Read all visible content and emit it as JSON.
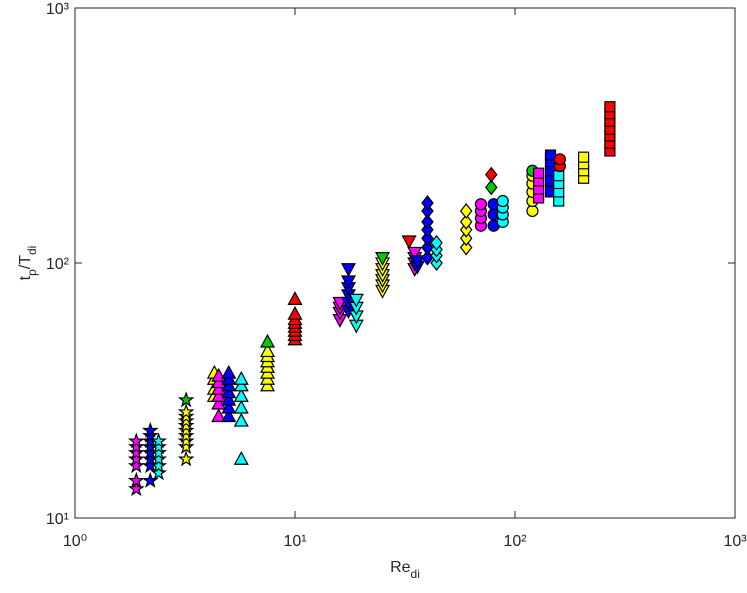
{
  "chart_data": {
    "type": "scatter",
    "xlabel": [
      "Re",
      "di"
    ],
    "ylabel": [
      "t",
      "p",
      "/T",
      "di"
    ],
    "xscale": "log",
    "yscale": "log",
    "xlim": [
      1,
      1000
    ],
    "ylim": [
      10,
      1000
    ],
    "xticks": [
      {
        "value": 1,
        "label": "10⁰"
      },
      {
        "value": 10,
        "label": "10¹"
      },
      {
        "value": 100,
        "label": "10²"
      },
      {
        "value": 1000,
        "label": "10³"
      }
    ],
    "yticks": [
      {
        "value": 10,
        "label": "10¹"
      },
      {
        "value": 100,
        "label": "10²"
      },
      {
        "value": 1000,
        "label": "10³"
      }
    ],
    "series": [
      {
        "marker": "star",
        "color": "#ff00ff",
        "x": [
          1.9,
          1.9,
          1.9,
          1.9,
          1.9,
          1.9,
          1.9
        ],
        "y": [
          13,
          14,
          16,
          17,
          18,
          19,
          20
        ]
      },
      {
        "marker": "star",
        "color": "#0000ff",
        "x": [
          2.2,
          2.2,
          2.2,
          2.2,
          2.2,
          2.2,
          2.2,
          2.2
        ],
        "y": [
          14,
          16,
          17,
          18,
          19,
          20,
          21,
          22
        ]
      },
      {
        "marker": "star",
        "color": "#00ffff",
        "x": [
          2.4,
          2.4,
          2.4,
          2.4,
          2.4,
          2.4
        ],
        "y": [
          15,
          16,
          17,
          18,
          19,
          20
        ]
      },
      {
        "marker": "star",
        "color": "#ffff00",
        "x": [
          3.2,
          3.2,
          3.2,
          3.2,
          3.2,
          3.2,
          3.2,
          3.2,
          3.2
        ],
        "y": [
          17,
          19,
          20,
          21,
          22,
          23,
          24,
          25,
          26
        ]
      },
      {
        "marker": "star",
        "color": "#00cc00",
        "x": [
          3.2
        ],
        "y": [
          29
        ]
      },
      {
        "marker": "triangle-up",
        "color": "#ffff00",
        "x": [
          4.3,
          4.3,
          4.3,
          4.3
        ],
        "y": [
          30,
          32,
          35,
          37
        ]
      },
      {
        "marker": "triangle-up",
        "color": "#ff00ff",
        "x": [
          4.5,
          4.5,
          4.5,
          4.5,
          4.5,
          4.5
        ],
        "y": [
          25,
          28,
          30,
          32,
          34,
          36
        ]
      },
      {
        "marker": "triangle-up",
        "color": "#0000ff",
        "x": [
          5,
          5,
          5,
          5,
          5,
          5,
          5
        ],
        "y": [
          25,
          27,
          29,
          31,
          33,
          35,
          37
        ]
      },
      {
        "marker": "triangle-up",
        "color": "#00ffff",
        "x": [
          5.7,
          5.7,
          5.7,
          5.7,
          5.7,
          5.7
        ],
        "y": [
          17,
          24,
          27,
          30,
          33,
          35
        ]
      },
      {
        "marker": "triangle-up",
        "color": "#ffff00",
        "x": [
          7.5,
          7.5,
          7.5,
          7.5,
          7.5,
          7.5,
          7.5
        ],
        "y": [
          33,
          35,
          37,
          39,
          41,
          43,
          45
        ]
      },
      {
        "marker": "triangle-up",
        "color": "#00cc00",
        "x": [
          7.5
        ],
        "y": [
          49
        ]
      },
      {
        "marker": "triangle-up",
        "color": "#ff0000",
        "x": [
          10,
          10,
          10,
          10,
          10,
          10,
          10,
          10
        ],
        "y": [
          50,
          52,
          54,
          56,
          58,
          60,
          63,
          72
        ]
      },
      {
        "marker": "triangle-down",
        "color": "#ff00ff",
        "x": [
          16,
          16,
          16,
          16
        ],
        "y": [
          60,
          64,
          67,
          70
        ]
      },
      {
        "marker": "triangle-down",
        "color": "#0000ff",
        "x": [
          17.5,
          17.5,
          17.5,
          17.5,
          17.5,
          17.5
        ],
        "y": [
          65,
          70,
          75,
          80,
          85,
          95
        ]
      },
      {
        "marker": "triangle-down",
        "color": "#00ffff",
        "x": [
          19,
          19,
          19,
          19
        ],
        "y": [
          57,
          62,
          67,
          72
        ]
      },
      {
        "marker": "triangle-down",
        "color": "#ffff00",
        "x": [
          25,
          25,
          25,
          25,
          25,
          25
        ],
        "y": [
          78,
          82,
          86,
          90,
          95,
          100
        ]
      },
      {
        "marker": "triangle-down",
        "color": "#00cc00",
        "x": [
          25
        ],
        "y": [
          105
        ]
      },
      {
        "marker": "triangle-down",
        "color": "#ff0000",
        "x": [
          33
        ],
        "y": [
          122
        ]
      },
      {
        "marker": "triangle-down",
        "color": "#ff00ff",
        "x": [
          35,
          35,
          35,
          35
        ],
        "y": [
          95,
          100,
          105,
          110
        ]
      },
      {
        "marker": "triangle-down",
        "color": "#0000ff",
        "x": [
          36,
          36
        ],
        "y": [
          97,
          102
        ]
      },
      {
        "marker": "diamond",
        "color": "#0000ff",
        "x": [
          40,
          40,
          40,
          40,
          40,
          40,
          40
        ],
        "y": [
          105,
          115,
          125,
          135,
          145,
          160,
          172
        ]
      },
      {
        "marker": "diamond",
        "color": "#00ffff",
        "x": [
          44,
          44,
          44,
          44
        ],
        "y": [
          100,
          107,
          113,
          120
        ]
      },
      {
        "marker": "diamond",
        "color": "#ffff00",
        "x": [
          60,
          60,
          60,
          60,
          60
        ],
        "y": [
          115,
          125,
          135,
          145,
          160
        ]
      },
      {
        "marker": "diamond",
        "color": "#00cc00",
        "x": [
          78
        ],
        "y": [
          198
        ]
      },
      {
        "marker": "diamond",
        "color": "#ff0000",
        "x": [
          78
        ],
        "y": [
          222
        ]
      },
      {
        "marker": "circle",
        "color": "#ff00ff",
        "x": [
          70,
          70,
          70,
          70
        ],
        "y": [
          140,
          150,
          160,
          170
        ]
      },
      {
        "marker": "circle",
        "color": "#0000ff",
        "x": [
          80,
          80,
          80
        ],
        "y": [
          140,
          155,
          170
        ]
      },
      {
        "marker": "circle",
        "color": "#00ffff",
        "x": [
          88,
          88,
          88,
          88
        ],
        "y": [
          145,
          155,
          165,
          175
        ]
      },
      {
        "marker": "circle",
        "color": "#ffff00",
        "x": [
          120,
          120,
          120,
          120,
          120
        ],
        "y": [
          160,
          175,
          190,
          205,
          220
        ]
      },
      {
        "marker": "circle",
        "color": "#00cc00",
        "x": [
          120
        ],
        "y": [
          230
        ]
      },
      {
        "marker": "square",
        "color": "#ff00ff",
        "x": [
          128,
          128,
          128,
          128
        ],
        "y": [
          180,
          195,
          210,
          225
        ]
      },
      {
        "marker": "square",
        "color": "#0000ff",
        "x": [
          145,
          145,
          145,
          145,
          145
        ],
        "y": [
          190,
          210,
          230,
          250,
          265
        ]
      },
      {
        "marker": "square",
        "color": "#00ffff",
        "x": [
          158,
          158,
          158,
          158
        ],
        "y": [
          175,
          190,
          205,
          220
        ]
      },
      {
        "marker": "circle",
        "color": "#ff0000",
        "x": [
          160,
          160
        ],
        "y": [
          240,
          255
        ]
      },
      {
        "marker": "square",
        "color": "#ffff00",
        "x": [
          205,
          205,
          205,
          205
        ],
        "y": [
          215,
          230,
          245,
          260
        ]
      },
      {
        "marker": "square",
        "color": "#ff0000",
        "x": [
          270,
          270,
          270,
          270,
          270,
          270,
          270
        ],
        "y": [
          275,
          295,
          315,
          335,
          360,
          385,
          410
        ]
      }
    ]
  }
}
